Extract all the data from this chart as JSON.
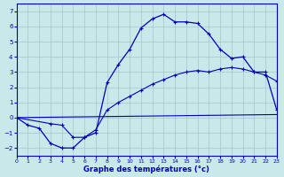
{
  "xlabel": "Graphe des températures (°c)",
  "background_color": "#c8e8ea",
  "line_color": "#0000bb",
  "grid_color": "#a0c8cc",
  "xlim": [
    0,
    23
  ],
  "ylim": [
    -2.5,
    7.5
  ],
  "xticks": [
    0,
    1,
    2,
    3,
    4,
    5,
    6,
    7,
    8,
    9,
    10,
    11,
    12,
    13,
    14,
    15,
    16,
    17,
    18,
    19,
    20,
    21,
    22,
    23
  ],
  "yticks": [
    -2,
    -1,
    0,
    1,
    2,
    3,
    4,
    5,
    6,
    7
  ],
  "curve1_x": [
    0,
    1,
    2,
    3,
    4,
    5,
    6,
    7,
    8,
    9,
    10,
    11,
    12,
    13,
    14,
    15,
    16,
    17,
    18,
    19,
    20,
    21,
    22,
    23
  ],
  "curve1_y": [
    0.0,
    -0.5,
    -0.7,
    -1.7,
    -2.0,
    -2.0,
    -1.3,
    -1.0,
    2.3,
    3.5,
    4.5,
    5.9,
    6.5,
    6.8,
    6.3,
    6.3,
    6.2,
    5.5,
    4.5,
    3.9,
    4.0,
    3.0,
    3.0,
    0.5
  ],
  "curve2_x": [
    0,
    3,
    4,
    5,
    6,
    7,
    8,
    9,
    10,
    11,
    12,
    13,
    14,
    15,
    16,
    17,
    18,
    19,
    20,
    21,
    22,
    23
  ],
  "curve2_y": [
    0.0,
    -0.4,
    -0.5,
    -1.3,
    -1.3,
    -0.8,
    0.5,
    1.0,
    1.4,
    1.8,
    2.2,
    2.5,
    2.8,
    3.0,
    3.1,
    3.0,
    3.2,
    3.3,
    3.2,
    3.0,
    2.8,
    2.4
  ],
  "curve3_x": [
    0,
    23
  ],
  "curve3_y": [
    0.0,
    0.2
  ],
  "marker_x2": [
    0,
    3,
    4,
    5,
    6,
    7,
    8,
    9,
    10,
    11,
    12,
    13,
    14,
    15,
    16,
    17,
    18,
    19,
    20,
    21,
    22,
    23
  ]
}
